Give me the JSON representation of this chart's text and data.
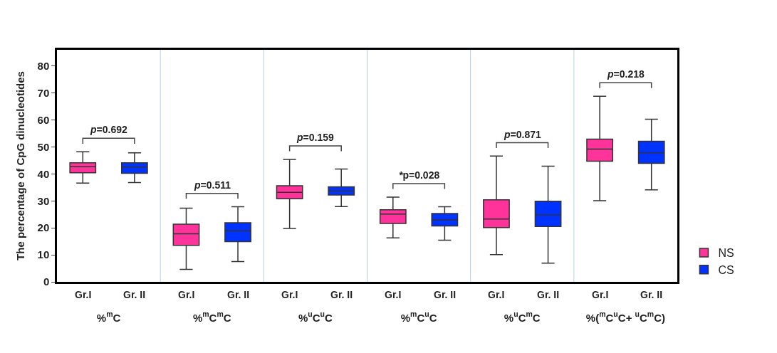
{
  "chart_data": {
    "type": "box",
    "ylabel": "The percentage of CpG dinucleotides",
    "categories": [
      "%$^{m}$C",
      "%$^{m}$C$^{m}$C",
      "%$^{u}$C$^{u}$C",
      "%$^{m}$C$^{u}$C",
      "%$^{u}$C$^{m}$C",
      "%($^{m}$C$^{u}$C+ $^{u}$C$^{m}$C)"
    ],
    "series": [
      {
        "name": "NS",
        "color": "#ff3399",
        "boxes": [
          {
            "low": 36.6,
            "q1": 40.4,
            "median": 42.7,
            "q3": 44.1,
            "high": 48.2
          },
          {
            "low": 4.6,
            "q1": 13.5,
            "median": 17.8,
            "q3": 21.4,
            "high": 27.3
          },
          {
            "low": 19.8,
            "q1": 30.8,
            "median": 33.2,
            "q3": 35.6,
            "high": 45.4
          },
          {
            "low": 16.3,
            "q1": 21.6,
            "median": 25.1,
            "q3": 26.7,
            "high": 31.4
          },
          {
            "low": 10.1,
            "q1": 20.1,
            "median": 23.3,
            "q3": 30.4,
            "high": 46.6
          },
          {
            "low": 30.1,
            "q1": 44.7,
            "median": 49.2,
            "q3": 52.9,
            "high": 68.8
          }
        ]
      },
      {
        "name": "CS",
        "color": "#0033ff",
        "boxes": [
          {
            "low": 36.8,
            "q1": 40.2,
            "median": 42.6,
            "q3": 44.1,
            "high": 47.8
          },
          {
            "low": 7.5,
            "q1": 14.9,
            "median": 18.9,
            "q3": 21.9,
            "high": 27.8
          },
          {
            "low": 27.9,
            "q1": 32.2,
            "median": 33.7,
            "q3": 35.2,
            "high": 41.8
          },
          {
            "low": 15.4,
            "q1": 20.7,
            "median": 22.9,
            "q3": 25.3,
            "high": 27.8
          },
          {
            "low": 6.9,
            "q1": 20.5,
            "median": 24.8,
            "q3": 29.9,
            "high": 42.9
          },
          {
            "low": 34.1,
            "q1": 43.9,
            "median": 47.9,
            "q3": 52.1,
            "high": 60.3
          }
        ]
      }
    ],
    "annotations": [
      "Gr.I",
      "Gr. II",
      "Gr.I",
      "Gr. II",
      "Gr.I",
      "Gr. II",
      "Gr.I",
      "Gr. II",
      "Gr.I",
      "Gr. II",
      "Gr.I",
      "Gr. II",
      "p=0.692",
      "p=0.511",
      "p=0.159",
      "*p=0.028",
      "p=0.871",
      "p=0.218"
    ],
    "ylim": [
      0,
      86
    ],
    "yticks": [
      0,
      10,
      20,
      30,
      40,
      50,
      60,
      70,
      80
    ],
    "legend": "right"
  }
}
